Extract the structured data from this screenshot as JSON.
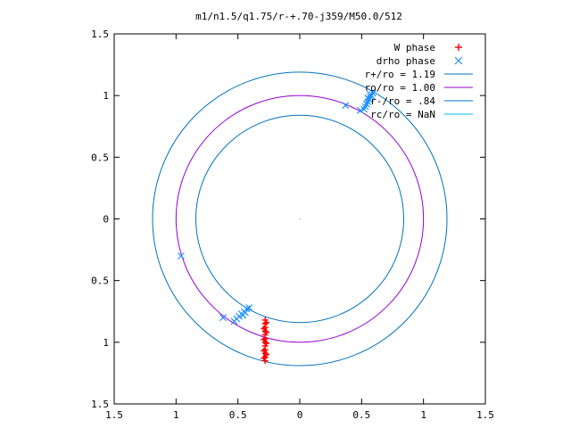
{
  "chart_data": {
    "type": "scatter",
    "title": "m1/n1.5/q1.75/r-+.70-j359/M50.0/512",
    "xlabel": "",
    "ylabel": "",
    "xlim": [
      -1.5,
      1.5
    ],
    "ylim": [
      -1.5,
      1.5
    ],
    "x_ticks": [
      -1.5,
      -1,
      -0.5,
      0,
      0.5,
      1,
      1.5
    ],
    "y_ticks": [
      -1.5,
      -1,
      -0.5,
      0,
      0.5,
      1,
      1.5
    ],
    "x_tick_labels": [
      "1.5",
      "1",
      "0.5",
      "0",
      "0.5",
      "1",
      "1.5"
    ],
    "y_tick_labels": [
      "1.5",
      "1",
      "0.5",
      "0",
      "0.5",
      "1",
      "1.5"
    ],
    "grid": false,
    "legend_position": "top-right",
    "series": [
      {
        "name": "W phase",
        "kind": "points",
        "marker": "plus",
        "color": "#ff0000",
        "points": [
          [
            -0.28,
            -0.82
          ],
          [
            -0.28,
            -0.85
          ],
          [
            -0.28,
            -0.88
          ],
          [
            -0.28,
            -0.91
          ],
          [
            -0.28,
            -0.94
          ],
          [
            -0.28,
            -0.97
          ],
          [
            -0.28,
            -1.0
          ],
          [
            -0.28,
            -1.03
          ],
          [
            -0.28,
            -1.06
          ],
          [
            -0.28,
            -1.09
          ],
          [
            -0.28,
            -1.12
          ],
          [
            -0.28,
            -1.15
          ],
          [
            -0.27,
            -0.84
          ],
          [
            -0.27,
            -0.92
          ],
          [
            -0.27,
            -1.01
          ],
          [
            -0.27,
            -1.1
          ],
          [
            -0.29,
            -0.89
          ],
          [
            -0.29,
            -0.98
          ],
          [
            -0.29,
            -1.07
          ],
          [
            -0.29,
            -1.13
          ]
        ]
      },
      {
        "name": "drho phase",
        "kind": "points",
        "marker": "cross",
        "color": "#1e90ff",
        "points": [
          [
            0.55,
            0.95
          ],
          [
            0.56,
            0.97
          ],
          [
            0.57,
            0.99
          ],
          [
            0.58,
            1.0
          ],
          [
            0.54,
            0.93
          ],
          [
            0.53,
            0.91
          ],
          [
            0.52,
            0.89
          ],
          [
            0.57,
            1.01
          ],
          [
            0.59,
            1.02
          ],
          [
            0.55,
            0.98
          ],
          [
            0.37,
            0.92
          ],
          [
            0.49,
            0.88
          ],
          [
            -0.45,
            -0.75
          ],
          [
            -0.47,
            -0.77
          ],
          [
            -0.49,
            -0.79
          ],
          [
            -0.51,
            -0.81
          ],
          [
            -0.43,
            -0.73
          ],
          [
            -0.41,
            -0.72
          ],
          [
            -0.46,
            -0.78
          ],
          [
            -0.44,
            -0.76
          ],
          [
            -0.53,
            -0.83
          ],
          [
            -0.62,
            -0.8
          ],
          [
            -0.96,
            -0.3
          ]
        ]
      },
      {
        "name": "r+/ro = 1.19",
        "kind": "circle",
        "radius": 1.19,
        "color": "#0072bd"
      },
      {
        "name": "ro/ro = 1.00",
        "kind": "circle",
        "radius": 1.0,
        "color": "#9400d3"
      },
      {
        "name": "r-/ro = .84",
        "kind": "circle",
        "radius": 0.84,
        "color": "#0072bd"
      },
      {
        "name": "rc/ro = NaN",
        "kind": "circle",
        "radius": null,
        "color": "#00c0e0"
      }
    ]
  }
}
